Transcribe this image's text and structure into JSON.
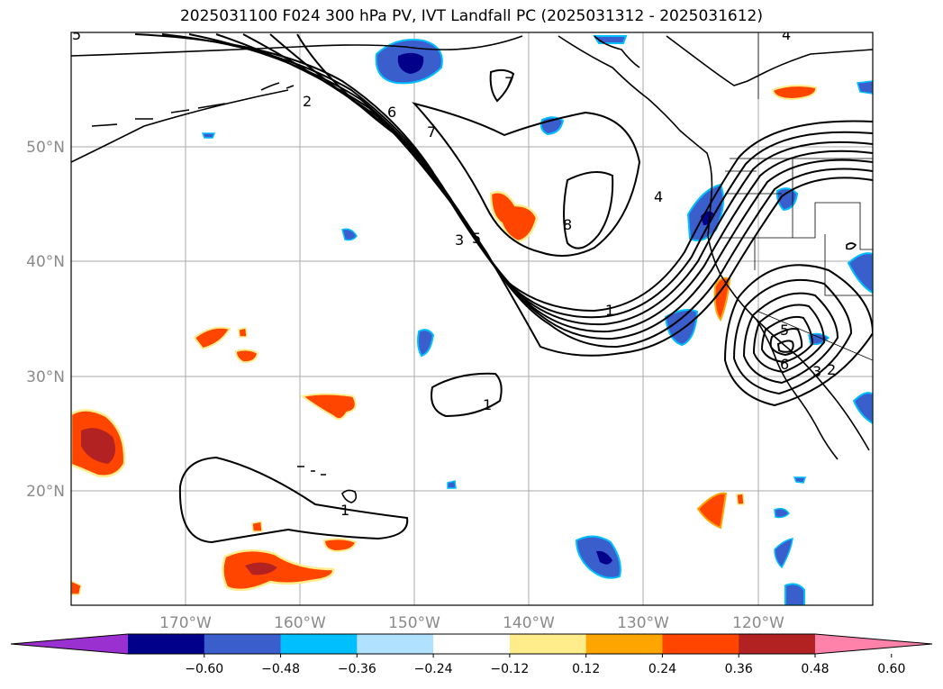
{
  "title": "2025031100 F024 300 hPa PV, IVT Landfall PC (2025031312 - 2025031612)",
  "map": {
    "lat_labels": [
      "50°N",
      "40°N",
      "30°N",
      "20°N"
    ],
    "lon_labels": [
      "170°W",
      "160°W",
      "150°W",
      "140°W",
      "130°W",
      "120°W"
    ],
    "contour_labels": [
      "2",
      "6",
      "7",
      "7",
      "8",
      "3",
      "5",
      "4",
      "1",
      "1",
      "1",
      "5",
      "6",
      "3",
      "2",
      "5",
      "4"
    ]
  },
  "colorbar": {
    "colors": [
      "#9b30d0",
      "#00008b",
      "#3a5fcd",
      "#00bfff",
      "#b0e2ff",
      "#ffffff",
      "#ffec8b",
      "#ffa500",
      "#ff4500",
      "#b22222",
      "#ff82ab"
    ],
    "tick_labels": [
      "−0.60",
      "−0.48",
      "−0.36",
      "−0.24",
      "−0.12",
      "0.12",
      "0.24",
      "0.36",
      "0.48",
      "0.60"
    ]
  }
}
